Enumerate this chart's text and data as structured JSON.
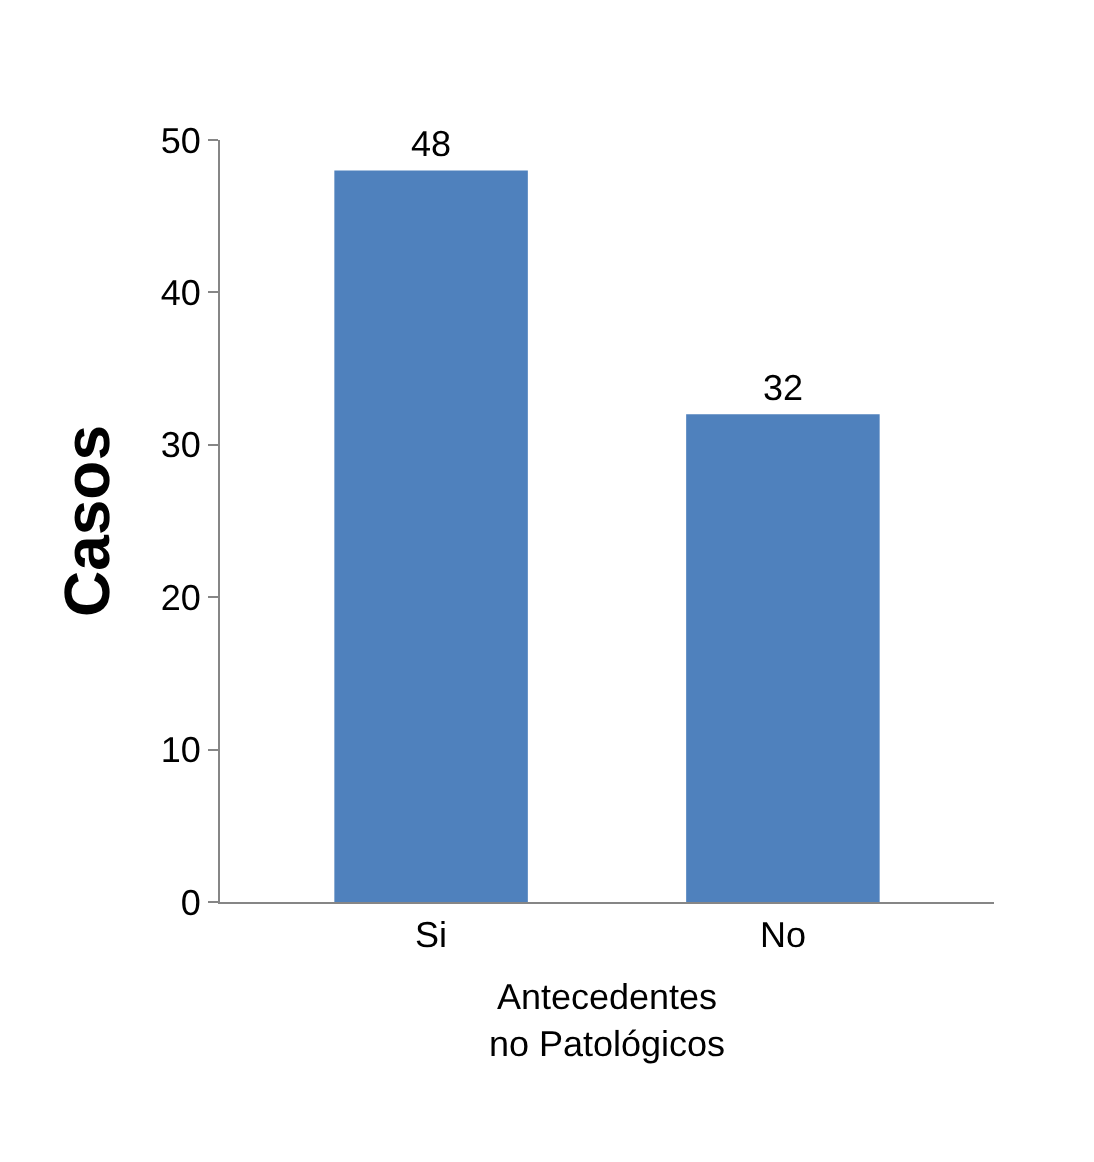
{
  "chart_data": {
    "type": "bar",
    "categories": [
      "Si",
      "No"
    ],
    "values": [
      48,
      32
    ],
    "color": "#4f81bd",
    "ylim": [
      0,
      50
    ],
    "yticks": [
      0,
      10,
      20,
      30,
      40,
      50
    ],
    "xlabel": "Antecedentes no Patológicos",
    "ylabel": "Casos",
    "data_labels": true,
    "grid": false
  }
}
